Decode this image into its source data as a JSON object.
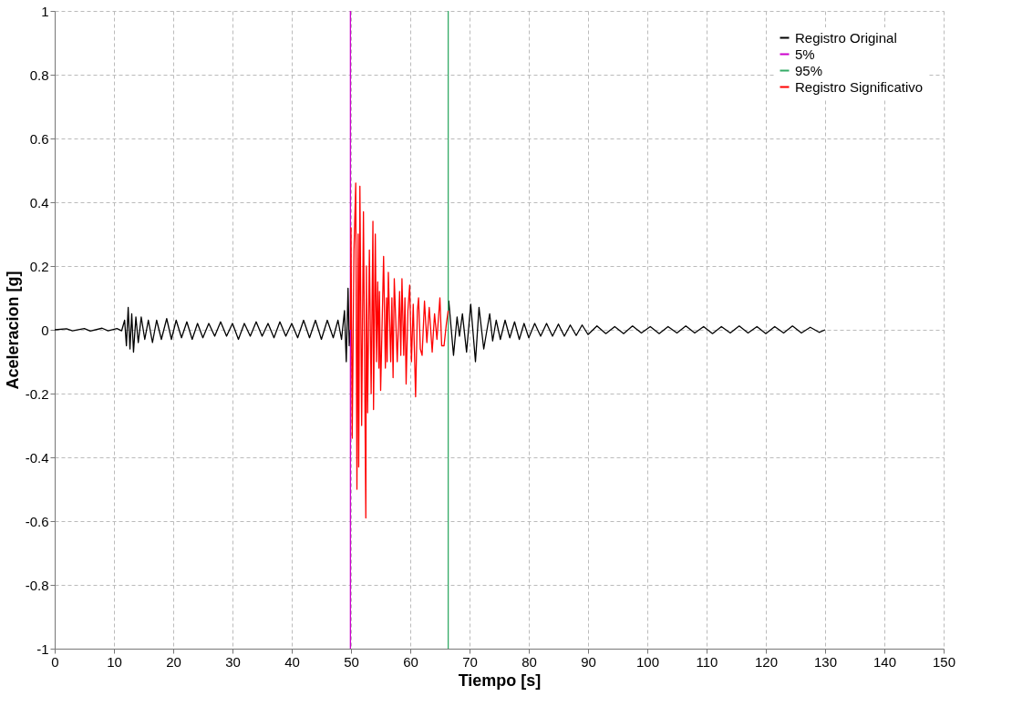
{
  "chart_data": {
    "type": "line",
    "xlabel": "Tiempo [s]",
    "ylabel": "Aceleracion [g]",
    "xlim": [
      0,
      150
    ],
    "xticks": [
      0,
      10,
      20,
      30,
      40,
      50,
      60,
      70,
      80,
      90,
      100,
      110,
      120,
      130,
      140,
      150
    ],
    "ylim": [
      -1,
      1
    ],
    "yticks": [
      -1,
      -0.8,
      -0.6,
      -0.4,
      -0.2,
      0,
      0.2,
      0.4,
      0.6,
      0.8,
      1
    ],
    "grid": true,
    "legend": "top right",
    "line_style": "solid",
    "series": [
      {
        "name": "Registro Original",
        "color": "#000000",
        "x": [
          0,
          2,
          3,
          5,
          6,
          8,
          9,
          10.5,
          11.3,
          11.8,
          12.1,
          12.4,
          12.7,
          13.0,
          13.3,
          13.7,
          14.1,
          14.6,
          15.2,
          15.8,
          16.5,
          17.2,
          18,
          18.9,
          19.7,
          20.5,
          21.4,
          22.3,
          23.2,
          24.1,
          25,
          26,
          27,
          28,
          29,
          30,
          31,
          32,
          33,
          34,
          35,
          36,
          37,
          38,
          39,
          40,
          41,
          42,
          43,
          44,
          45,
          46,
          47,
          47.8,
          48.4,
          48.9,
          49.2,
          49.5,
          49.7,
          49.9,
          58,
          66.4,
          66.5,
          67.3,
          67.9,
          68.3,
          68.8,
          69.5,
          70.2,
          71.0,
          71.6,
          72.4,
          73.4,
          73.9,
          74.5,
          75.2,
          76,
          76.8,
          77.6,
          78.4,
          79.2,
          80,
          81,
          82,
          83,
          84,
          85,
          86,
          87,
          88,
          89,
          90,
          91.5,
          93,
          94.5,
          96,
          97.5,
          99,
          100.5,
          102,
          103.5,
          105,
          106.5,
          108,
          109.5,
          111,
          112.5,
          114,
          115.5,
          117,
          118.5,
          120,
          121.5,
          123,
          124.5,
          126,
          127.5,
          129,
          130
        ],
        "values": [
          0,
          0.003,
          -0.003,
          0.004,
          -0.004,
          0.005,
          -0.003,
          0.004,
          -0.003,
          0.03,
          -0.05,
          0.07,
          -0.06,
          0.05,
          -0.07,
          0.04,
          -0.04,
          0.04,
          -0.03,
          0.03,
          -0.04,
          0.03,
          -0.03,
          0.035,
          -0.03,
          0.03,
          -0.025,
          0.025,
          -0.03,
          0.02,
          -0.025,
          0.02,
          -0.02,
          0.025,
          -0.02,
          0.02,
          -0.03,
          0.02,
          -0.02,
          0.025,
          -0.02,
          0.02,
          -0.025,
          0.025,
          -0.02,
          0.02,
          -0.025,
          0.03,
          -0.025,
          0.03,
          -0.03,
          0.03,
          -0.025,
          0.03,
          -0.03,
          0.06,
          -0.1,
          0.13,
          -0.05,
          0,
          null,
          0.06,
          0.09,
          -0.08,
          0.04,
          -0.02,
          0.05,
          -0.07,
          0.08,
          -0.1,
          0.07,
          -0.06,
          0.05,
          -0.035,
          0.03,
          -0.03,
          0.03,
          -0.025,
          0.025,
          -0.03,
          0.02,
          -0.025,
          0.02,
          -0.02,
          0.02,
          -0.02,
          0.018,
          -0.02,
          0.015,
          -0.018,
          0.015,
          -0.015,
          0.012,
          -0.012,
          0.01,
          -0.012,
          0.012,
          -0.01,
          0.01,
          -0.012,
          0.01,
          -0.01,
          0.012,
          -0.01,
          0.01,
          -0.012,
          0.01,
          -0.01,
          0.012,
          -0.01,
          0.01,
          -0.012,
          0.01,
          -0.01,
          0.012,
          -0.01,
          0.008,
          -0.008,
          0
        ]
      },
      {
        "name": "5%",
        "color": "#cc00cc",
        "x": [
          49.9,
          49.9
        ],
        "values": [
          -1,
          1
        ]
      },
      {
        "name": "95%",
        "color": "#33aa66",
        "x": [
          66.4,
          66.4
        ],
        "values": [
          -1,
          1
        ]
      },
      {
        "name": "Registro Significativo",
        "color": "#ff0000",
        "x": [
          49.9,
          50.0,
          50.2,
          50.5,
          50.8,
          51.0,
          51.2,
          51.3,
          51.5,
          51.8,
          52.1,
          52.5,
          52.6,
          52.8,
          53.1,
          53.4,
          53.7,
          53.8,
          54.1,
          54.3,
          54.5,
          54.7,
          54.8,
          55.0,
          55.5,
          55.8,
          56.0,
          56.1,
          56.3,
          56.7,
          56.9,
          57.1,
          57.3,
          57.8,
          58.2,
          58.4,
          58.6,
          58.9,
          59.1,
          59.3,
          59.6,
          59.9,
          60.2,
          60.5,
          60.9,
          61.2,
          61.4,
          61.7,
          62.0,
          62.4,
          62.8,
          63.2,
          63.7,
          64.1,
          64.5,
          65.0,
          65.3,
          65.7,
          66.1,
          66.4
        ],
        "values": [
          0,
          0.32,
          -0.34,
          0.25,
          0.46,
          -0.5,
          0.3,
          -0.43,
          0.45,
          -0.3,
          0.37,
          -0.59,
          0.2,
          -0.26,
          0.25,
          -0.2,
          0.34,
          -0.25,
          0.3,
          -0.1,
          0.15,
          -0.12,
          0.12,
          -0.19,
          0.23,
          -0.12,
          0.1,
          -0.1,
          0.18,
          -0.1,
          0.1,
          -0.15,
          0.16,
          -0.1,
          0.12,
          -0.08,
          0.16,
          -0.08,
          0.1,
          -0.17,
          0.06,
          0.14,
          -0.1,
          0.08,
          -0.21,
          0.06,
          0.1,
          -0.06,
          -0.08,
          0.09,
          -0.04,
          0.07,
          -0.07,
          0.05,
          -0.03,
          0.1,
          -0.05,
          -0.05,
          0.02,
          0.06
        ]
      }
    ]
  }
}
